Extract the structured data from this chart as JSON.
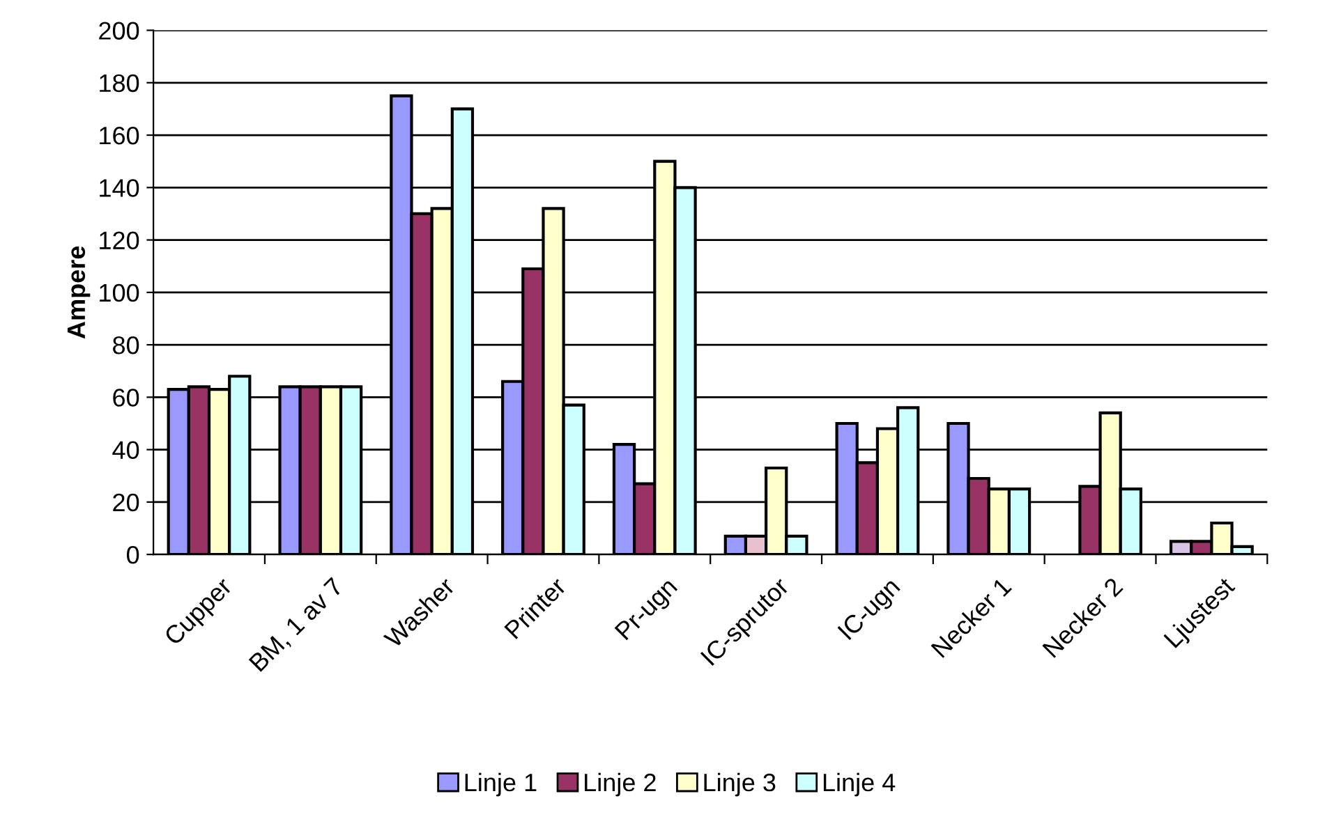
{
  "chart_data": {
    "type": "bar",
    "ylabel": "Ampere",
    "categories": [
      "Cupper",
      "BM, 1 av 7",
      "Washer",
      "Printer",
      "Pr-ugn",
      "IC-sprutor",
      "IC-ugn",
      "Necker 1",
      "Necker 2",
      "Ljustest"
    ],
    "series": [
      {
        "name": "Linje 1",
        "color": "#9999ff",
        "values": [
          63,
          64,
          175,
          66,
          42,
          7,
          50,
          50,
          null,
          5
        ],
        "colors": [
          "#9999ff",
          "#9999ff",
          "#9999ff",
          "#9999ff",
          "#9999ff",
          "#9999ff",
          "#9999ff",
          "#9999ff",
          "#9999ff",
          "#d9c3e6"
        ]
      },
      {
        "name": "Linje 2",
        "color": "#993366",
        "values": [
          64,
          64,
          130,
          109,
          27,
          7,
          35,
          29,
          26,
          5
        ],
        "colors": [
          "#993366",
          "#993366",
          "#993366",
          "#993366",
          "#993366",
          "#e8c0d0",
          "#993366",
          "#993366",
          "#993366",
          "#993366"
        ]
      },
      {
        "name": "Linje 3",
        "color": "#ffffcc",
        "values": [
          63,
          64,
          132,
          132,
          150,
          33,
          48,
          25,
          54,
          12
        ]
      },
      {
        "name": "Linje 4",
        "color": "#ccffff",
        "values": [
          68,
          64,
          170,
          57,
          140,
          7,
          56,
          25,
          25,
          3
        ]
      }
    ],
    "ylim": [
      0,
      200
    ],
    "yticks": [
      0,
      20,
      40,
      60,
      80,
      100,
      120,
      140,
      160,
      180,
      200
    ],
    "grid": "y",
    "legend": "bottom"
  }
}
